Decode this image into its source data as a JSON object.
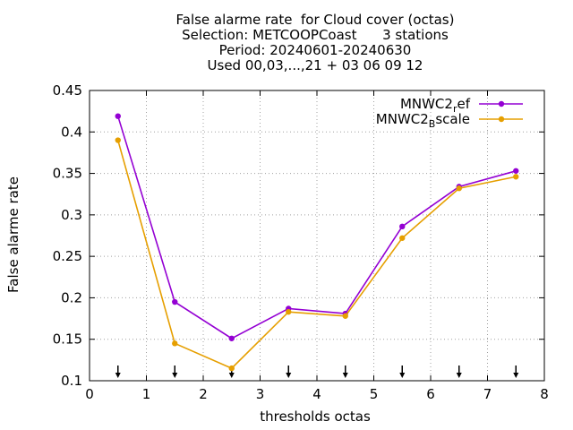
{
  "chart_data": {
    "type": "line",
    "title_lines": [
      "False alarme rate  for Cloud cover (octas)",
      "Selection: METCOOPCoast      3 stations",
      "Period: 20240601-20240630",
      "Used 00,03,...,21 + 03 06 09 12"
    ],
    "xlabel": "thresholds octas",
    "ylabel": "False alarme rate",
    "xlim": [
      0,
      8
    ],
    "ylim": [
      0.1,
      0.45
    ],
    "xticks": [
      0,
      1,
      2,
      3,
      4,
      5,
      6,
      7,
      8
    ],
    "yticks": [
      0.1,
      0.15,
      0.2,
      0.25,
      0.3,
      0.35,
      0.4,
      0.45
    ],
    "ytick_labels": [
      "0.1",
      "0.15",
      "0.2",
      "0.25",
      "0.3",
      "0.35",
      "0.4",
      "0.45"
    ],
    "grid": true,
    "legend_position": "top-right",
    "x": [
      0.5,
      1.5,
      2.5,
      3.5,
      4.5,
      5.5,
      6.5,
      7.5
    ],
    "series": [
      {
        "name": "MNWC2",
        "name_sub": "r",
        "name_tail": "ef",
        "color": "#9400d3",
        "values": [
          0.419,
          0.195,
          0.151,
          0.187,
          0.181,
          0.286,
          0.334,
          0.353
        ]
      },
      {
        "name": "MNWC2",
        "name_sub": "B",
        "name_tail": "scale",
        "color": "#e69f00",
        "values": [
          0.39,
          0.145,
          0.115,
          0.183,
          0.178,
          0.272,
          0.332,
          0.346
        ]
      }
    ],
    "arrow_markers_x": [
      0.5,
      1.5,
      2.5,
      3.5,
      4.5,
      5.5,
      6.5,
      7.5
    ]
  }
}
